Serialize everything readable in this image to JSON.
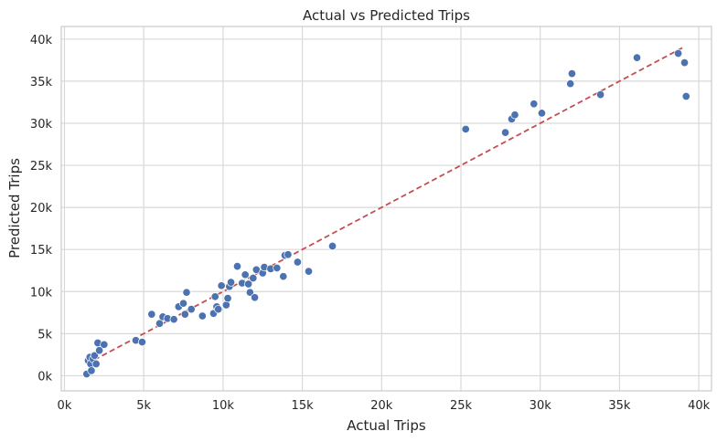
{
  "chart_data": {
    "type": "scatter",
    "title": "Actual vs Predicted Trips",
    "xlabel": "Actual Trips",
    "ylabel": "Predicted Trips",
    "xlim": [
      -200,
      40800
    ],
    "ylim": [
      -1800,
      41500
    ],
    "xticks": [
      0,
      5000,
      10000,
      15000,
      20000,
      25000,
      30000,
      35000,
      40000
    ],
    "xtick_labels": [
      "0k",
      "5k",
      "10k",
      "15k",
      "20k",
      "25k",
      "30k",
      "35k",
      "40k"
    ],
    "yticks": [
      0,
      5000,
      10000,
      15000,
      20000,
      25000,
      30000,
      35000,
      40000
    ],
    "ytick_labels": [
      "0k",
      "5k",
      "10k",
      "15k",
      "20k",
      "25k",
      "30k",
      "35k",
      "40k"
    ],
    "grid": true,
    "colors": {
      "points": "#4c72b0",
      "reference_line": "#c44e52",
      "grid": "#d9d9d9",
      "axes": "#cccccc"
    },
    "reference_line": {
      "style": "dashed",
      "x": [
        1400,
        39100
      ],
      "y": [
        1400,
        39100
      ]
    },
    "points": [
      {
        "x": 1400,
        "y": 200
      },
      {
        "x": 1500,
        "y": 1800
      },
      {
        "x": 1600,
        "y": 2200
      },
      {
        "x": 1650,
        "y": 1400
      },
      {
        "x": 1700,
        "y": 600
      },
      {
        "x": 1800,
        "y": 2000
      },
      {
        "x": 1900,
        "y": 2400
      },
      {
        "x": 2000,
        "y": 1400
      },
      {
        "x": 2100,
        "y": 3900
      },
      {
        "x": 2200,
        "y": 3000
      },
      {
        "x": 2500,
        "y": 3700
      },
      {
        "x": 4500,
        "y": 4200
      },
      {
        "x": 4900,
        "y": 4000
      },
      {
        "x": 5500,
        "y": 7300
      },
      {
        "x": 6000,
        "y": 6200
      },
      {
        "x": 6200,
        "y": 7000
      },
      {
        "x": 6500,
        "y": 6800
      },
      {
        "x": 6900,
        "y": 6700
      },
      {
        "x": 7200,
        "y": 8200
      },
      {
        "x": 7500,
        "y": 8600
      },
      {
        "x": 7600,
        "y": 7300
      },
      {
        "x": 7700,
        "y": 9900
      },
      {
        "x": 8000,
        "y": 7900
      },
      {
        "x": 8700,
        "y": 7100
      },
      {
        "x": 9400,
        "y": 7400
      },
      {
        "x": 9500,
        "y": 9400
      },
      {
        "x": 9600,
        "y": 8200
      },
      {
        "x": 9700,
        "y": 7900
      },
      {
        "x": 9900,
        "y": 10700
      },
      {
        "x": 10200,
        "y": 8400
      },
      {
        "x": 10300,
        "y": 9200
      },
      {
        "x": 10400,
        "y": 10600
      },
      {
        "x": 10500,
        "y": 11100
      },
      {
        "x": 10900,
        "y": 13000
      },
      {
        "x": 11200,
        "y": 11000
      },
      {
        "x": 11400,
        "y": 12000
      },
      {
        "x": 11600,
        "y": 10900
      },
      {
        "x": 11700,
        "y": 9900
      },
      {
        "x": 11900,
        "y": 11600
      },
      {
        "x": 12000,
        "y": 9300
      },
      {
        "x": 12100,
        "y": 12600
      },
      {
        "x": 12500,
        "y": 12200
      },
      {
        "x": 12600,
        "y": 12900
      },
      {
        "x": 13000,
        "y": 12700
      },
      {
        "x": 13400,
        "y": 12800
      },
      {
        "x": 13800,
        "y": 11800
      },
      {
        "x": 13900,
        "y": 14300
      },
      {
        "x": 14100,
        "y": 14400
      },
      {
        "x": 14700,
        "y": 13500
      },
      {
        "x": 15400,
        "y": 12400
      },
      {
        "x": 16900,
        "y": 15400
      },
      {
        "x": 25300,
        "y": 29300
      },
      {
        "x": 27800,
        "y": 28900
      },
      {
        "x": 28200,
        "y": 30500
      },
      {
        "x": 28400,
        "y": 31000
      },
      {
        "x": 29600,
        "y": 32300
      },
      {
        "x": 30100,
        "y": 31200
      },
      {
        "x": 31900,
        "y": 34700
      },
      {
        "x": 32000,
        "y": 35900
      },
      {
        "x": 33800,
        "y": 33400
      },
      {
        "x": 36100,
        "y": 37800
      },
      {
        "x": 38700,
        "y": 38300
      },
      {
        "x": 39100,
        "y": 37200
      },
      {
        "x": 39200,
        "y": 33200
      }
    ]
  }
}
